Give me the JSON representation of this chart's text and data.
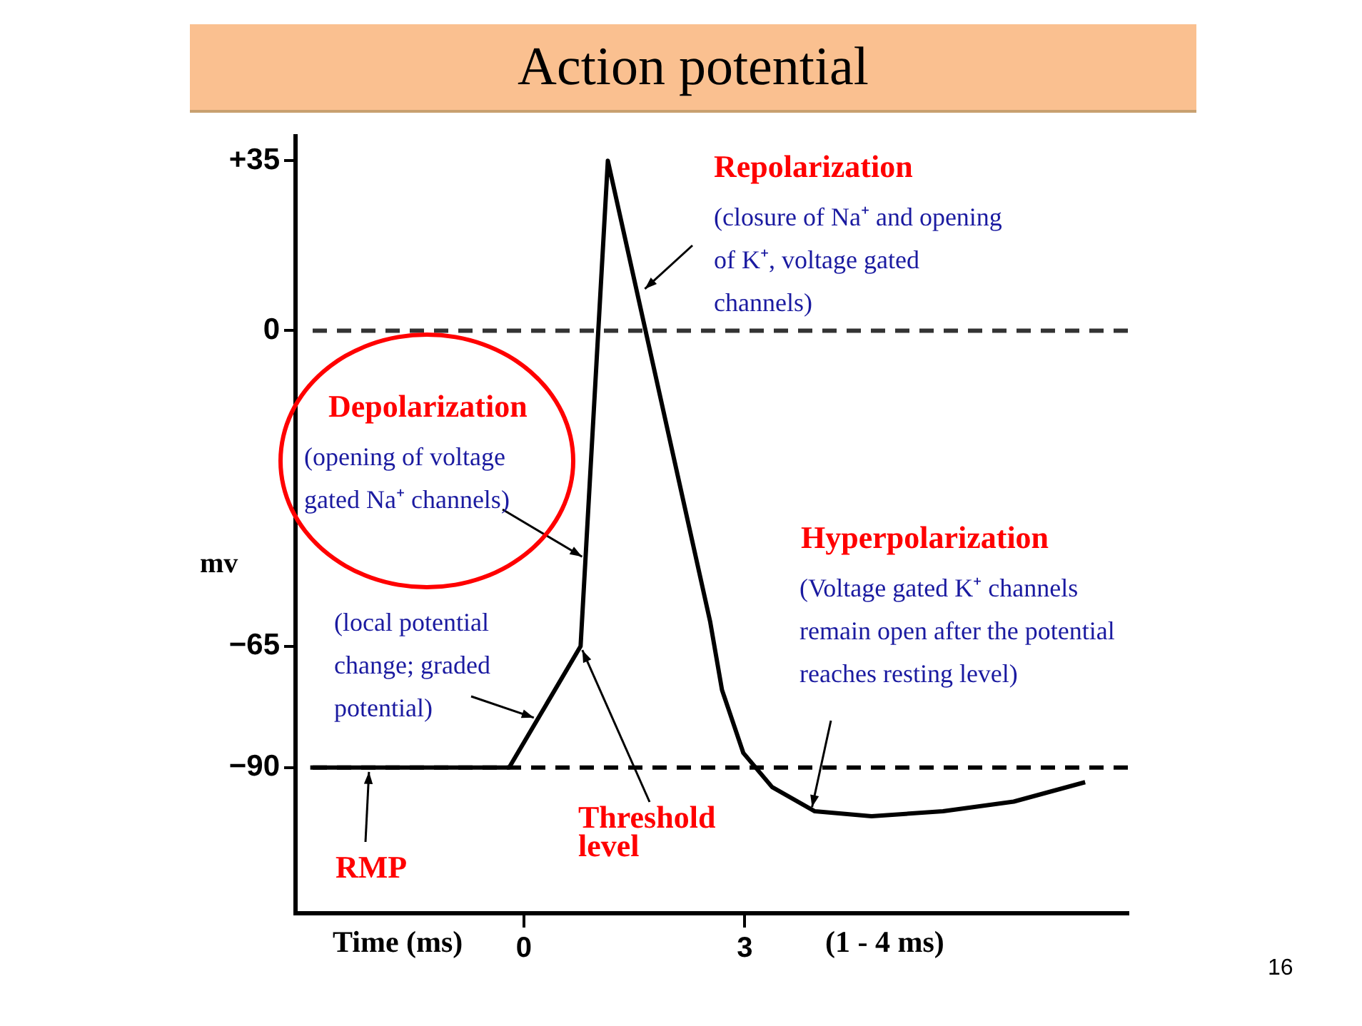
{
  "chart_data": {
    "type": "line",
    "title": "Action potential",
    "xlabel": "Time (ms)",
    "ylabel": "mv",
    "x": [
      -2.9,
      -0.2,
      0.77,
      1.14,
      2.53,
      2.69,
      2.98,
      3.37,
      3.95,
      4.72,
      5.69,
      6.65,
      7.62
    ],
    "series": [
      {
        "color": "#000000",
        "values": [
          -90,
          -90,
          -65,
          35,
          -60,
          -74,
          -87,
          -94,
          -99,
          -100,
          -99,
          -97,
          -93
        ]
      }
    ],
    "xlim": [
      -3.1,
      8.2
    ],
    "xticks": [
      0,
      3
    ],
    "ylim": [
      -120,
      40
    ],
    "yticks": [
      {
        "value": 35,
        "label": "+35"
      },
      0,
      {
        "value": -65,
        "label": "−65"
      },
      {
        "value": -90,
        "label": "−90"
      }
    ],
    "ref_lines": [
      {
        "axis": "y",
        "value": 0,
        "color": "#333333",
        "line_style": "dashed"
      },
      {
        "axis": "y",
        "value": -90,
        "color": "#000000",
        "line_style": "dashed"
      }
    ],
    "annotations": [
      "Repolarization",
      {
        "text": "(closure of Na⁺ and opening of K⁺, voltage gated channels)",
        "x": 1.6,
        "y": 8
      },
      "Depolarization",
      {
        "text": "(opening of voltage gated Na⁺ channels)",
        "x": 0.84,
        "y": -47
      },
      "Hyperpolarization",
      {
        "text": "(Voltage gated K⁺ channels remain open after the potential reaches resting level)",
        "x": 3.9,
        "y": -99
      },
      {
        "text": "(local potential change; graded potential)",
        "x": 0.19,
        "y": -80
      },
      {
        "text": "Threshold level",
        "x": 0.77,
        "y": -65
      },
      {
        "text": "RMP",
        "x": -2.1,
        "y": -90
      },
      "(1 - 4 ms)",
      "16"
    ],
    "grid": false,
    "legend": false,
    "marker": "none",
    "line_style": "solid"
  }
}
